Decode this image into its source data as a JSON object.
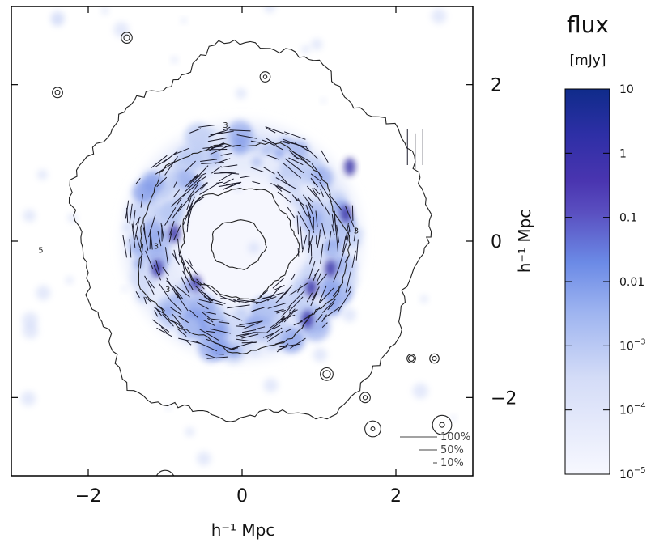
{
  "chart_data": {
    "type": "heatmap",
    "xlabel": "h⁻¹ Mpc",
    "ylabel": "h⁻¹ Mpc",
    "xlim": [
      -3,
      3
    ],
    "ylim": [
      -3,
      3
    ],
    "x_ticks": [
      {
        "value": -2,
        "label": "−2"
      },
      {
        "value": 0,
        "label": "0"
      },
      {
        "value": 2,
        "label": "2"
      }
    ],
    "y_ticks": [
      {
        "value": 2,
        "label": "2"
      },
      {
        "value": 0,
        "label": "0"
      },
      {
        "value": -2,
        "label": "−2"
      }
    ],
    "colorbar": {
      "title": "flux",
      "unit": "[mJy]",
      "scale": "log",
      "range": [
        1e-05,
        10
      ],
      "ticks": [
        {
          "value": 10,
          "label": "10"
        },
        {
          "value": 1,
          "label": "1"
        },
        {
          "value": 0.1,
          "label": "0.1"
        },
        {
          "value": 0.01,
          "label": "0.01"
        },
        {
          "value": 0.001,
          "label": "10",
          "exp": "−3"
        },
        {
          "value": 0.0001,
          "label": "10",
          "exp": "−4"
        },
        {
          "value": 1e-05,
          "label": "10",
          "exp": "−5"
        }
      ],
      "colors": [
        "#f6f7ff",
        "#c9d3f5",
        "#8ea7ee",
        "#5b6fd8",
        "#3e2fa8",
        "#2a2fa8",
        "#0f2b8a"
      ]
    },
    "polarization_legend": [
      "100%",
      "50%",
      "10%"
    ],
    "contour_labels": [
      "3",
      "3",
      "3",
      "3",
      "5"
    ],
    "emission_ring": {
      "center": [
        0.0,
        0.0
      ],
      "radius_mpc": 1.4,
      "inner_radius_mpc": 0.9
    }
  }
}
